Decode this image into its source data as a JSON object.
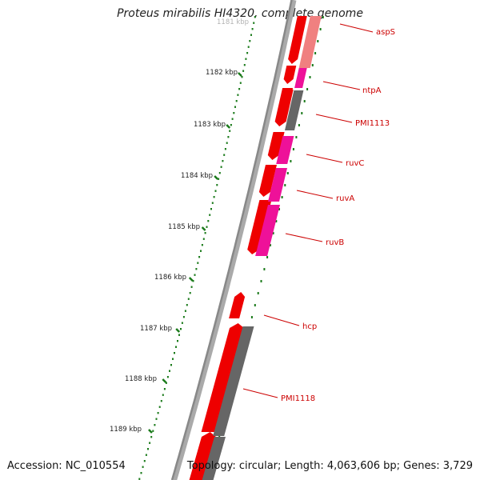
{
  "title": "Proteus mirabilis HI4320, complete genome",
  "footer": {
    "accession": "Accession: NC_010554",
    "summary": "Topology: circular; Length: 4,063,606 bp; Genes: 3,729"
  },
  "ruler": {
    "faded_label": "1181 kbp",
    "labels": [
      "1182 kbp",
      "1183 kbp",
      "1184 kbp",
      "1185 kbp",
      "1186 kbp",
      "1187 kbp",
      "1188 kbp",
      "1189 kbp"
    ],
    "tick_color": "#1a7a1a"
  },
  "gene_labels": [
    "aspS",
    "ntpA",
    "PMI1113",
    "ruvC",
    "ruvA",
    "ruvB",
    "hcp",
    "PMI1118"
  ],
  "colors": {
    "cds": "#ee0000",
    "cds_light": "#f08080",
    "rna_pink": "#ee1199",
    "gray_feature": "#666666",
    "backbone": "#888888",
    "label": "#cc0000"
  }
}
